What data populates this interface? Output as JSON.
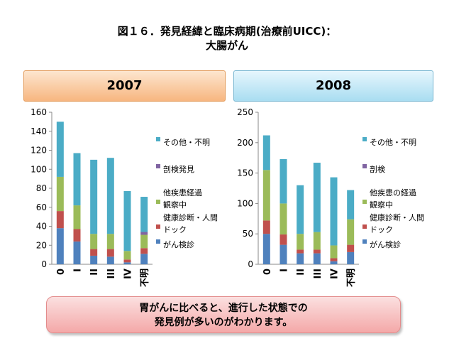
{
  "title": {
    "line1": "図１６．発見経緯と臨床病期(治療前UICC)：",
    "line2": "大腸がん"
  },
  "conclusion": {
    "line1": "胃がんに比べると、進行した状態での",
    "line2": "発見例が多いのがわかります。"
  },
  "colors": {
    "screening_exam": "#4f81bd",
    "health_checkup": "#c0504d",
    "followup": "#9bbb59",
    "autopsy": "#8064a2",
    "other_unknown": "#4bacc6"
  },
  "chart_data": [
    {
      "type": "bar",
      "stacked": true,
      "title": "2007",
      "categories": [
        "0",
        "I",
        "II",
        "III",
        "IV",
        "不明"
      ],
      "ylim": [
        0,
        160
      ],
      "yticks": [
        0,
        20,
        40,
        60,
        80,
        100,
        120,
        140,
        160
      ],
      "legend_position": "right",
      "series": [
        {
          "name": "がん検診",
          "color": "#4f81bd",
          "values": [
            38,
            24,
            9,
            8,
            2,
            11
          ]
        },
        {
          "name": "健康診断・人間ドック",
          "color": "#c0504d",
          "values": [
            18,
            13,
            7,
            8,
            3,
            6
          ]
        },
        {
          "name": "他疾患経過観察中",
          "color": "#9bbb59",
          "values": [
            36,
            25,
            16,
            16,
            9,
            14
          ]
        },
        {
          "name": "剖検発見",
          "color": "#8064a2",
          "values": [
            0,
            0,
            0,
            0,
            0,
            3
          ]
        },
        {
          "name": "その他・不明",
          "color": "#4bacc6",
          "values": [
            58,
            55,
            78,
            80,
            63,
            37
          ]
        }
      ]
    },
    {
      "type": "bar",
      "stacked": true,
      "title": "2008",
      "categories": [
        "0",
        "I",
        "II",
        "III",
        "IV",
        "不明"
      ],
      "ylim": [
        0,
        250
      ],
      "yticks": [
        0,
        50,
        100,
        150,
        200,
        250
      ],
      "legend_position": "right",
      "series": [
        {
          "name": "がん検診",
          "color": "#4f81bd",
          "values": [
            50,
            32,
            18,
            18,
            5,
            20
          ]
        },
        {
          "name": "健康診断・人間ドック",
          "color": "#c0504d",
          "values": [
            22,
            17,
            6,
            6,
            5,
            12
          ]
        },
        {
          "name": "他疾患の経過観察中",
          "color": "#9bbb59",
          "values": [
            83,
            51,
            26,
            29,
            21,
            42
          ]
        },
        {
          "name": "剖検",
          "color": "#8064a2",
          "values": [
            0,
            0,
            0,
            0,
            0,
            0
          ]
        },
        {
          "name": "その他・不明",
          "color": "#4bacc6",
          "values": [
            57,
            73,
            80,
            114,
            112,
            48
          ]
        }
      ]
    }
  ]
}
